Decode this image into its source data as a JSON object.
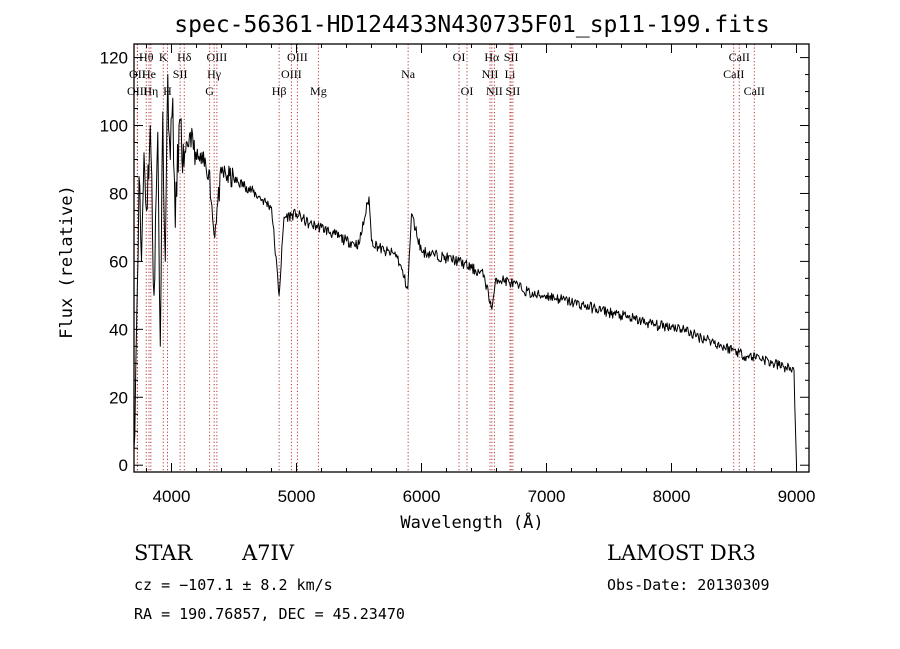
{
  "chart_data": {
    "type": "line",
    "title": "spec-56361-HD124433N430735F01_sp11-199.fits",
    "xlabel": "Wavelength (Å)",
    "ylabel": "Flux (relative)",
    "xlim": [
      3700,
      9100
    ],
    "ylim": [
      -2,
      124
    ],
    "xticks": [
      4000,
      5000,
      6000,
      7000,
      8000,
      9000
    ],
    "yticks": [
      0,
      20,
      40,
      60,
      80,
      100,
      120
    ],
    "series": [
      {
        "name": "spectrum",
        "x": [
          3700,
          3720,
          3740,
          3760,
          3780,
          3800,
          3830,
          3860,
          3890,
          3910,
          3930,
          3950,
          3970,
          3990,
          4010,
          4030,
          4060,
          4100,
          4150,
          4200,
          4250,
          4300,
          4340,
          4400,
          4500,
          4600,
          4700,
          4800,
          4861,
          4900,
          5000,
          5100,
          5200,
          5300,
          5400,
          5500,
          5580,
          5600,
          5700,
          5800,
          5890,
          5920,
          6000,
          6100,
          6200,
          6300,
          6400,
          6500,
          6563,
          6600,
          6700,
          6800,
          6900,
          7000,
          7100,
          7200,
          7300,
          7400,
          7500,
          7600,
          7700,
          7800,
          7900,
          8000,
          8100,
          8200,
          8300,
          8400,
          8500,
          8600,
          8700,
          8800,
          8900,
          8980,
          9000
        ],
        "y": [
          5,
          40,
          85,
          60,
          92,
          75,
          100,
          50,
          98,
          35,
          104,
          60,
          115,
          90,
          108,
          70,
          100,
          88,
          98,
          90,
          89,
          87,
          68,
          86,
          84,
          82,
          79,
          76,
          50,
          73,
          74,
          71,
          70,
          68,
          66,
          65,
          79,
          66,
          63,
          62,
          52,
          74,
          63,
          62,
          61,
          60,
          58,
          56,
          46,
          55,
          54,
          52,
          50,
          50,
          49,
          48,
          47,
          46,
          45,
          44,
          43,
          42,
          41,
          41,
          40,
          38,
          37,
          35,
          34,
          32,
          32,
          30,
          29,
          28,
          0
        ]
      }
    ],
    "line_markers": [
      {
        "label": "OII",
        "wl": 3727,
        "row": 2
      },
      {
        "label": "OIII",
        "wl": 3727,
        "row": 3
      },
      {
        "label": "Hθ",
        "wl": 3798,
        "row": 1
      },
      {
        "label": "He",
        "wl": 3820,
        "row": 2
      },
      {
        "label": "Hη",
        "wl": 3835,
        "row": 3
      },
      {
        "label": "K",
        "wl": 3934,
        "row": 1
      },
      {
        "label": "H",
        "wl": 3968,
        "row": 3
      },
      {
        "label": "Hδ",
        "wl": 4102,
        "row": 1
      },
      {
        "label": "SII",
        "wl": 4069,
        "row": 2
      },
      {
        "label": "OIII",
        "wl": 4363,
        "row": 1
      },
      {
        "label": "Hγ",
        "wl": 4341,
        "row": 2
      },
      {
        "label": "G",
        "wl": 4305,
        "row": 3
      },
      {
        "label": "Hβ",
        "wl": 4861,
        "row": 3
      },
      {
        "label": "OIII",
        "wl": 5007,
        "row": 1
      },
      {
        "label": "OIII",
        "wl": 4959,
        "row": 2
      },
      {
        "label": "Mg",
        "wl": 5175,
        "row": 3
      },
      {
        "label": "Na",
        "wl": 5893,
        "row": 2
      },
      {
        "label": "OI",
        "wl": 6300,
        "row": 1
      },
      {
        "label": "OI",
        "wl": 6364,
        "row": 3
      },
      {
        "label": "Hα",
        "wl": 6563,
        "row": 1
      },
      {
        "label": "SII",
        "wl": 6717,
        "row": 1
      },
      {
        "label": "NII",
        "wl": 6548,
        "row": 2
      },
      {
        "label": "Li",
        "wl": 6708,
        "row": 2
      },
      {
        "label": "NII",
        "wl": 6583,
        "row": 3
      },
      {
        "label": "SII",
        "wl": 6731,
        "row": 3
      },
      {
        "label": "CaII",
        "wl": 8542,
        "row": 1
      },
      {
        "label": "CaII",
        "wl": 8498,
        "row": 2
      },
      {
        "label": "CaII",
        "wl": 8662,
        "row": 3
      }
    ]
  },
  "info": {
    "class": "STAR",
    "subclass": "A7IV",
    "survey": "LAMOST DR3",
    "cz": "cz = −107.1 ± 8.2 km/s",
    "obs_date": "Obs-Date: 20130309",
    "coords": "RA = 190.76857, DEC =  45.23470"
  },
  "colors": {
    "line": "#000000",
    "marker": "#b22222",
    "axis": "#000000"
  }
}
